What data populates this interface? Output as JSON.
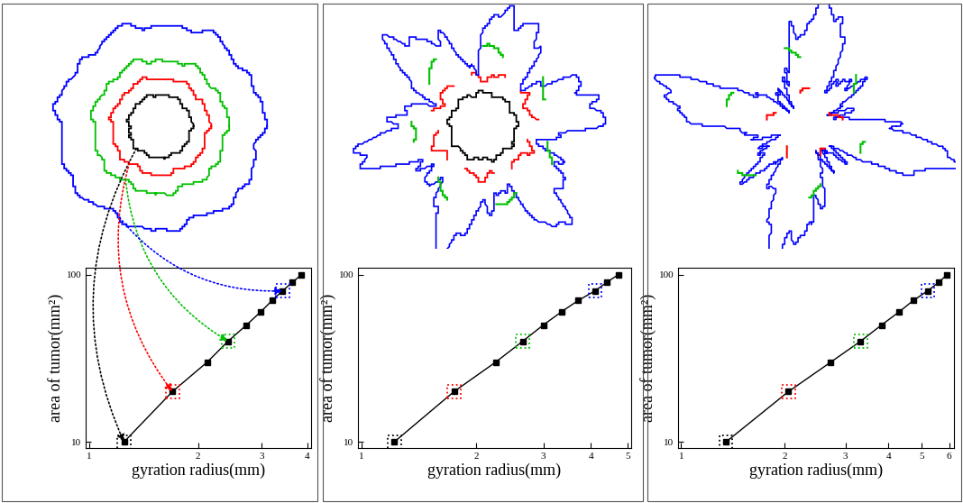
{
  "chart_data": [
    {
      "type": "line",
      "xlabel": "gyration radius(mm)",
      "ylabel": "area of tumor(mm²)",
      "log": true,
      "xlim": [
        0.98,
        4.1
      ],
      "ylim": [
        9.2,
        110
      ],
      "xticks": [
        1,
        2,
        3,
        4
      ],
      "yticks": [
        10,
        100
      ],
      "x": [
        1.25,
        1.7,
        2.12,
        2.42,
        2.72,
        2.98,
        3.2,
        3.42,
        3.64,
        3.86
      ],
      "series": [
        {
          "type": "line",
          "color": "#000000",
          "marker": "square",
          "line_style": "solid",
          "values": [
            10,
            20,
            30,
            40,
            50,
            60,
            70,
            80,
            90,
            100
          ]
        },
        {
          "type": "scatter",
          "marker": "dotted_square",
          "colors": [
            "#000000",
            "#ff0000",
            null,
            "#00c000",
            null,
            null,
            null,
            "#0000ff",
            null,
            null
          ],
          "values": [
            10,
            20,
            null,
            40,
            null,
            null,
            null,
            80,
            null,
            null
          ]
        }
      ]
    },
    {
      "type": "line",
      "xlabel": "gyration radius(mm)",
      "ylabel": "area of tumor(mm²)",
      "log": true,
      "xlim": [
        0.98,
        5.1
      ],
      "ylim": [
        9.2,
        110
      ],
      "xticks": [
        1,
        2,
        3,
        4,
        5
      ],
      "yticks": [
        10,
        100
      ],
      "x": [
        1.22,
        1.75,
        2.25,
        2.65,
        3.0,
        3.35,
        3.7,
        4.1,
        4.4,
        4.72
      ],
      "series": [
        {
          "type": "line",
          "color": "#000000",
          "marker": "square",
          "line_style": "solid",
          "values": [
            10,
            20,
            30,
            40,
            50,
            60,
            70,
            80,
            90,
            100
          ]
        },
        {
          "type": "scatter",
          "marker": "dotted_square",
          "colors": [
            "#000000",
            "#ff0000",
            null,
            "#00c000",
            null,
            null,
            null,
            "#0000ff",
            null,
            null
          ],
          "values": [
            10,
            20,
            null,
            40,
            null,
            null,
            null,
            80,
            null,
            null
          ]
        }
      ]
    },
    {
      "type": "line",
      "xlabel": "gyration radius(mm)",
      "ylabel": "area of tumor(mm²)",
      "log": true,
      "xlim": [
        0.98,
        6.2
      ],
      "ylim": [
        9.2,
        110
      ],
      "xticks": [
        1,
        2,
        3,
        4,
        5,
        6
      ],
      "yticks": [
        10,
        100
      ],
      "x": [
        1.35,
        2.05,
        2.72,
        3.32,
        3.82,
        4.3,
        4.72,
        5.2,
        5.6,
        5.92
      ],
      "series": [
        {
          "type": "line",
          "color": "#000000",
          "marker": "square",
          "line_style": "solid",
          "values": [
            10,
            20,
            30,
            40,
            50,
            60,
            70,
            80,
            90,
            100
          ]
        },
        {
          "type": "scatter",
          "marker": "dotted_square",
          "colors": [
            "#000000",
            "#ff0000",
            null,
            "#00c000",
            null,
            null,
            null,
            "#0000ff",
            null,
            null
          ],
          "values": [
            10,
            20,
            null,
            40,
            null,
            null,
            null,
            80,
            null,
            null
          ]
        }
      ]
    }
  ]
}
